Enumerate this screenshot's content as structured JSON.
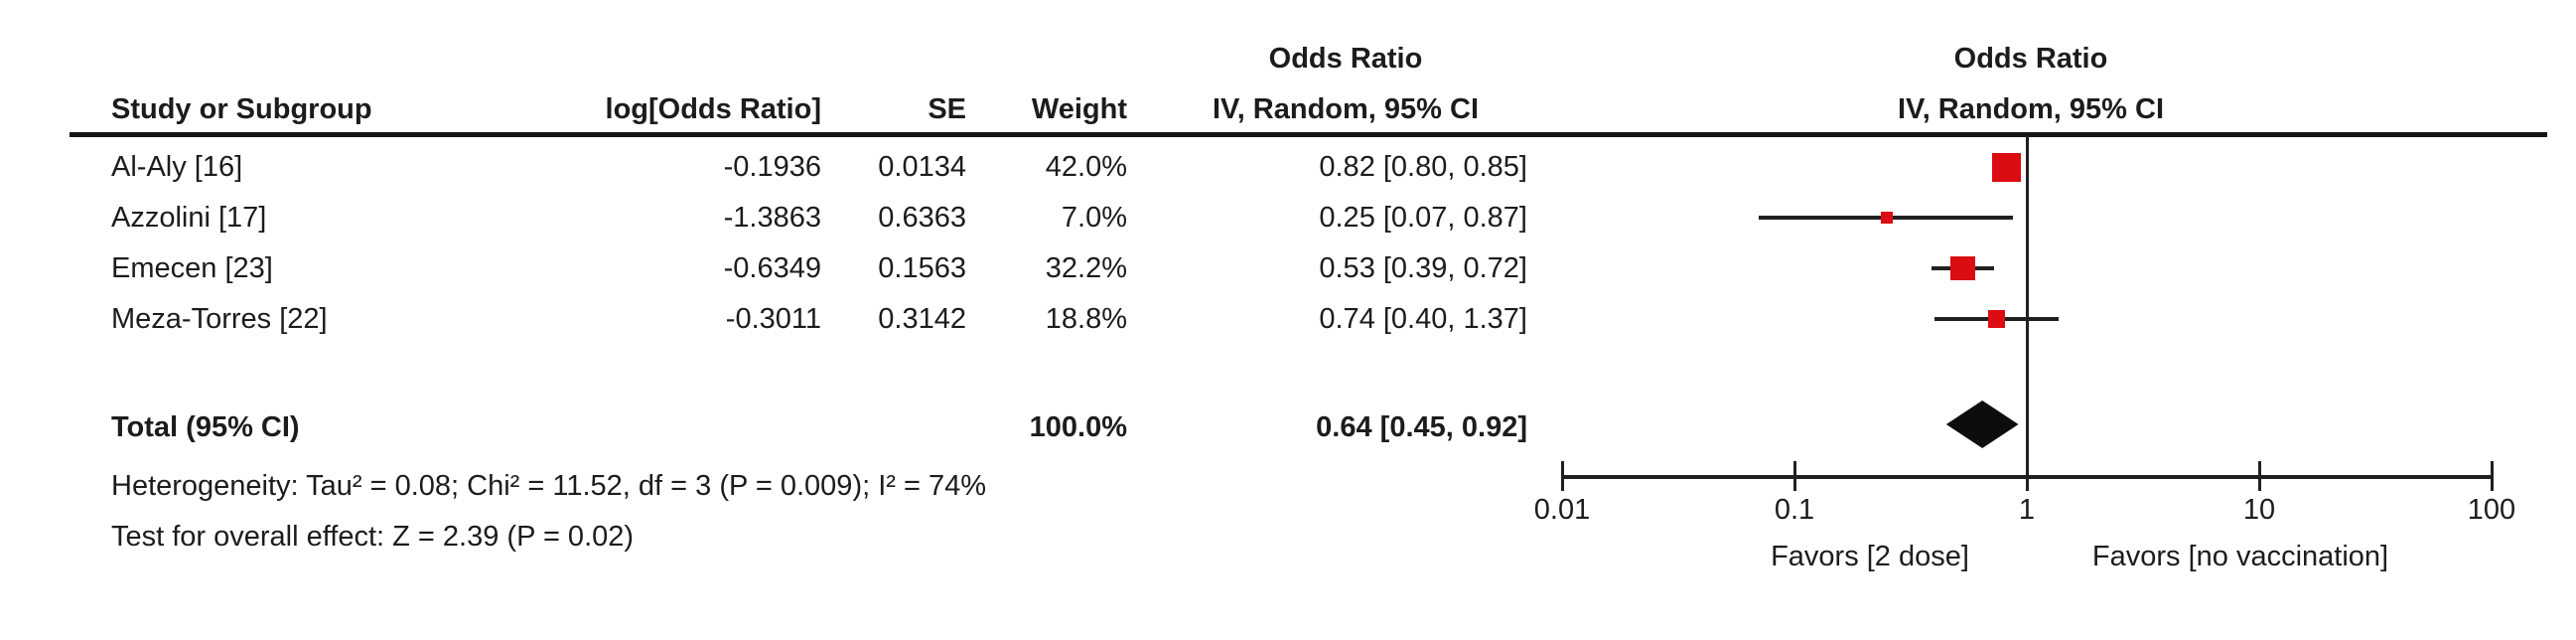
{
  "headers": {
    "col1_top": "Odds Ratio",
    "col1_bottom": "IV, Random, 95% CI",
    "plot_top": "Odds Ratio",
    "plot_bottom": "IV, Random, 95% CI",
    "study": "Study or Subgroup",
    "log_or": "log[Odds Ratio]",
    "se": "SE",
    "weight": "Weight"
  },
  "studies": [
    {
      "name": "Al-Aly [16]",
      "log_or": "-0.1936",
      "se": "0.0134",
      "weight": "42.0%",
      "ci_text": "0.82 [0.80, 0.85]",
      "or": 0.82,
      "ci_low": 0.8,
      "ci_high": 0.85,
      "weight_pct": 42.0
    },
    {
      "name": "Azzolini [17]",
      "log_or": "-1.3863",
      "se": "0.6363",
      "weight": "7.0%",
      "ci_text": "0.25 [0.07, 0.87]",
      "or": 0.25,
      "ci_low": 0.07,
      "ci_high": 0.87,
      "weight_pct": 7.0
    },
    {
      "name": "Emecen [23]",
      "log_or": "-0.6349",
      "se": "0.1563",
      "weight": "32.2%",
      "ci_text": "0.53 [0.39, 0.72]",
      "or": 0.53,
      "ci_low": 0.39,
      "ci_high": 0.72,
      "weight_pct": 32.2
    },
    {
      "name": "Meza-Torres [22]",
      "log_or": "-0.3011",
      "se": "0.3142",
      "weight": "18.8%",
      "ci_text": "0.74 [0.40, 1.37]",
      "or": 0.74,
      "ci_low": 0.4,
      "ci_high": 1.37,
      "weight_pct": 18.8
    }
  ],
  "total": {
    "label": "Total (95% CI)",
    "weight": "100.0%",
    "ci_text": "0.64 [0.45, 0.92]",
    "or": 0.64,
    "ci_low": 0.45,
    "ci_high": 0.92
  },
  "footnotes": {
    "heterogeneity": "Heterogeneity: Tau² = 0.08; Chi² = 11.52, df = 3 (P = 0.009); I² = 74%",
    "overall_effect": "Test for overall effect: Z = 2.39 (P = 0.02)"
  },
  "axis": {
    "tick_labels": [
      "0.01",
      "0.1",
      "1",
      "10",
      "100"
    ],
    "tick_values": [
      0.01,
      0.1,
      1,
      10,
      100
    ],
    "favors_left": "Favors [2 dose]",
    "favors_right": "Favors [no vaccination]"
  },
  "colors": {
    "marker_red": "#d90d12",
    "line_black": "#202020",
    "diamond_black": "#0d0d0d"
  },
  "chart_data": {
    "type": "scatter",
    "subtype": "forest-plot",
    "title": "Odds Ratio IV, Random, 95% CI",
    "x_scale": "log10",
    "x_range": [
      0.01,
      100
    ],
    "x_ticks": [
      0.01,
      0.1,
      1,
      10,
      100
    ],
    "reference_line": 1,
    "series": [
      {
        "name": "Al-Aly [16]",
        "or": 0.82,
        "ci": [
          0.8,
          0.85
        ],
        "weight_pct": 42.0
      },
      {
        "name": "Azzolini [17]",
        "or": 0.25,
        "ci": [
          0.07,
          0.87
        ],
        "weight_pct": 7.0
      },
      {
        "name": "Emecen [23]",
        "or": 0.53,
        "ci": [
          0.39,
          0.72
        ],
        "weight_pct": 32.2
      },
      {
        "name": "Meza-Torres [22]",
        "or": 0.74,
        "ci": [
          0.4,
          1.37
        ],
        "weight_pct": 18.8
      }
    ],
    "total": {
      "name": "Total (95% CI)",
      "or": 0.64,
      "ci": [
        0.45,
        0.92
      ],
      "weight_pct": 100.0
    },
    "xlabel_left": "Favors [2 dose]",
    "xlabel_right": "Favors [no vaccination]",
    "annotations": [
      "Heterogeneity: Tau² = 0.08; Chi² = 11.52, df = 3 (P = 0.009); I² = 74%",
      "Test for overall effect: Z = 2.39 (P = 0.02)"
    ],
    "legend_position": "none",
    "grid": false
  }
}
